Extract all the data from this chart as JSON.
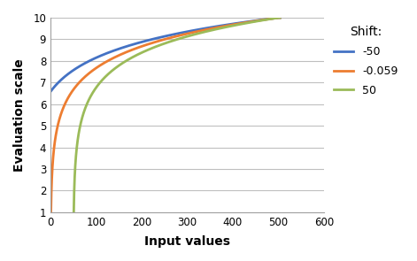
{
  "title": "",
  "xlabel": "Input values",
  "ylabel": "Evaluation scale",
  "xlim": [
    0,
    600
  ],
  "ylim": [
    1,
    10
  ],
  "xticks": [
    0,
    100,
    200,
    300,
    400,
    500,
    600
  ],
  "yticks": [
    1,
    2,
    3,
    4,
    5,
    6,
    7,
    8,
    9,
    10
  ],
  "legend_title": "Shift:",
  "series": [
    {
      "shift": -50,
      "color": "#4472C4",
      "label": "-50"
    },
    {
      "shift": -0.059,
      "color": "#ED7D31",
      "label": "-0.059"
    },
    {
      "shift": 50,
      "color": "#9BBB59",
      "label": "50"
    }
  ],
  "y_min": 1.0,
  "y_max": 10.0,
  "x_anchor": 500.0,
  "background_color": "#FFFFFF",
  "grid_color": "#BFBFBF",
  "linewidth": 2.0,
  "figsize": [
    4.71,
    2.95
  ],
  "dpi": 100
}
